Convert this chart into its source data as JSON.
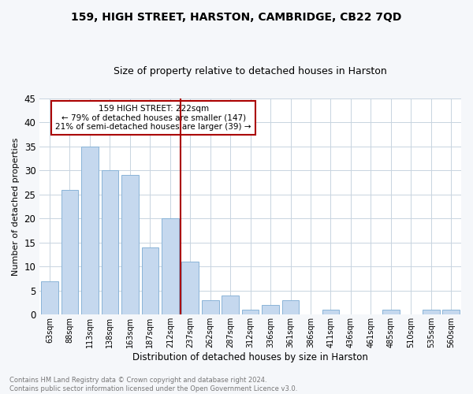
{
  "title": "159, HIGH STREET, HARSTON, CAMBRIDGE, CB22 7QD",
  "subtitle": "Size of property relative to detached houses in Harston",
  "xlabel": "Distribution of detached houses by size in Harston",
  "ylabel": "Number of detached properties",
  "categories": [
    "63sqm",
    "88sqm",
    "113sqm",
    "138sqm",
    "163sqm",
    "187sqm",
    "212sqm",
    "237sqm",
    "262sqm",
    "287sqm",
    "312sqm",
    "336sqm",
    "361sqm",
    "386sqm",
    "411sqm",
    "436sqm",
    "461sqm",
    "485sqm",
    "510sqm",
    "535sqm",
    "560sqm"
  ],
  "values": [
    7,
    26,
    35,
    30,
    29,
    14,
    20,
    11,
    3,
    4,
    1,
    2,
    3,
    0,
    1,
    0,
    0,
    1,
    0,
    1,
    1
  ],
  "bar_color": "#c5d8ee",
  "bar_edge_color": "#8ab4d8",
  "vline_color": "#aa0000",
  "vline_x_idx": 6,
  "annotation_text": "159 HIGH STREET: 222sqm\n← 79% of detached houses are smaller (147)\n21% of semi-detached houses are larger (39) →",
  "annotation_box_color": "#ffffff",
  "annotation_box_edge": "#aa0000",
  "ylim": [
    0,
    45
  ],
  "yticks": [
    0,
    5,
    10,
    15,
    20,
    25,
    30,
    35,
    40,
    45
  ],
  "footnote": "Contains HM Land Registry data © Crown copyright and database right 2024.\nContains public sector information licensed under the Open Government Licence v3.0.",
  "bg_color": "#f5f7fa",
  "plot_bg_color": "#ffffff",
  "grid_color": "#c8d4e0",
  "title_fontsize": 10,
  "subtitle_fontsize": 9
}
